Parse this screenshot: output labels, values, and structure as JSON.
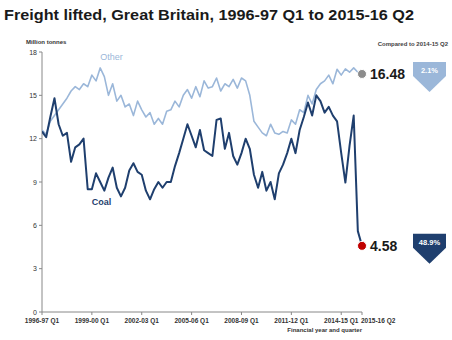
{
  "chart_data": {
    "type": "line",
    "title": "Freight lifted, Great Britain, 1996-97 Q1 to 2015-16 Q2",
    "y_label": "Million tonnes",
    "x_label": "Financial year and quarter",
    "categories": [
      "1996-97 Q1",
      null,
      null,
      null,
      null,
      null,
      null,
      null,
      null,
      null,
      null,
      null,
      "1999-00 Q1",
      null,
      null,
      null,
      null,
      null,
      null,
      null,
      null,
      null,
      null,
      null,
      "2002-03 Q1",
      null,
      null,
      null,
      null,
      null,
      null,
      null,
      null,
      null,
      null,
      null,
      "2005-06 Q1",
      null,
      null,
      null,
      null,
      null,
      null,
      null,
      null,
      null,
      null,
      null,
      "2008-09 Q1",
      null,
      null,
      null,
      null,
      null,
      null,
      null,
      null,
      null,
      null,
      null,
      "2011-12 Q1",
      null,
      null,
      null,
      null,
      null,
      null,
      null,
      null,
      null,
      null,
      null,
      "2014-15 Q1",
      null,
      null,
      null,
      null,
      "2015-16 Q2"
    ],
    "series": [
      {
        "name": "Other",
        "color": "#9bb7d9",
        "values": [
          12.6,
          12.3,
          13.2,
          13.6,
          14.0,
          14.4,
          14.8,
          15.3,
          15.6,
          15.4,
          15.8,
          15.6,
          16.4,
          16.0,
          16.9,
          16.3,
          15.0,
          15.8,
          14.6,
          15.0,
          14.2,
          14.4,
          13.6,
          14.6,
          14.0,
          13.5,
          13.8,
          13.0,
          13.4,
          13.0,
          13.9,
          14.0,
          14.6,
          14.2,
          15.0,
          15.4,
          14.8,
          15.6,
          14.9,
          16.0,
          15.5,
          15.6,
          16.2,
          15.3,
          15.8,
          15.6,
          16.1,
          15.5,
          16.2,
          16.0,
          15.0,
          13.2,
          12.8,
          12.4,
          12.2,
          13.0,
          12.4,
          12.3,
          12.5,
          12.4,
          13.3,
          13.0,
          14.0,
          13.8,
          15.0,
          14.4,
          15.4,
          15.8,
          16.0,
          16.4,
          15.8,
          16.8,
          16.4,
          16.83,
          16.6,
          16.9,
          16.6,
          16.48
        ]
      },
      {
        "name": "Coal",
        "color": "#1f3f6e",
        "values": [
          12.5,
          12.1,
          13.5,
          14.8,
          13.0,
          12.2,
          12.4,
          10.4,
          11.4,
          11.6,
          12.0,
          8.5,
          8.5,
          9.6,
          9.0,
          8.4,
          9.3,
          10.0,
          8.6,
          8.0,
          8.6,
          9.8,
          10.3,
          9.7,
          9.5,
          8.4,
          7.8,
          8.5,
          9.0,
          8.6,
          9.0,
          9.0,
          10.1,
          11.0,
          12.0,
          13.0,
          12.2,
          11.4,
          12.6,
          11.2,
          11.0,
          10.8,
          13.3,
          13.4,
          11.3,
          12.4,
          10.8,
          10.2,
          11.0,
          12.0,
          11.3,
          9.5,
          8.6,
          9.7,
          8.4,
          9.0,
          7.8,
          9.6,
          10.2,
          11.0,
          12.0,
          11.0,
          12.6,
          13.5,
          14.5,
          13.6,
          15.0,
          14.6,
          13.8,
          14.2,
          13.6,
          13.2,
          11.0,
          8.96,
          11.5,
          13.6,
          5.6,
          4.58
        ]
      }
    ],
    "ylim": [
      0,
      18
    ],
    "yticks": [
      0,
      3,
      6,
      9,
      12,
      15,
      18
    ],
    "grid": false,
    "annotations": {
      "compared_to": "Compared to 2014-15 Q2",
      "other_end": "16.48",
      "other_change": "2.1%",
      "coal_end": "4.58",
      "coal_change": "48.9%"
    }
  }
}
